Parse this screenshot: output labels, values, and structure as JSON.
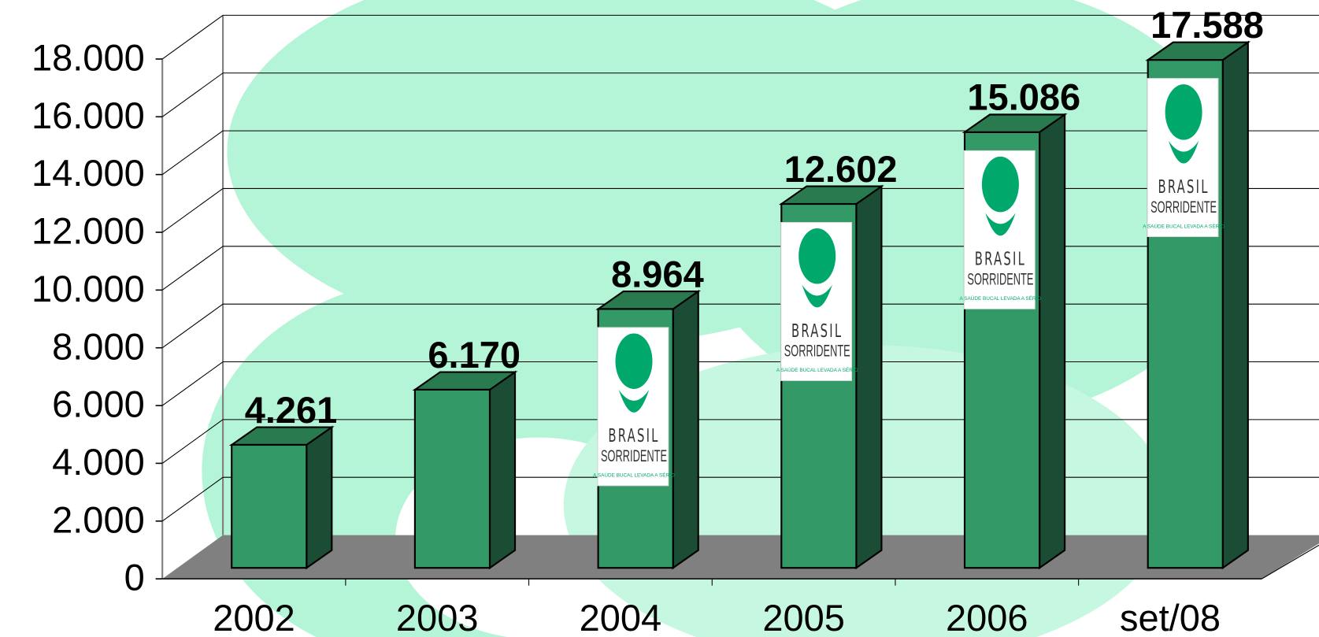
{
  "chart_data": {
    "type": "bar3d",
    "categories": [
      "2002",
      "2003",
      "2004",
      "2005",
      "2006",
      "set/08"
    ],
    "values": [
      4261,
      6170,
      8964,
      12602,
      15086,
      17588
    ],
    "value_labels": [
      "4.261",
      "6.170",
      "8.964",
      "12.602",
      "15.086",
      "17.588"
    ],
    "colors": {
      "front": "#339966",
      "side": "#1b4d34",
      "top": "#2a7a50"
    },
    "ylim": [
      0,
      18000
    ],
    "yticks": [
      0,
      {
        "value": 2000,
        "label": "2.000"
      },
      {
        "value": 4000,
        "label": "4.000"
      },
      {
        "value": 6000,
        "label": "6.000"
      },
      {
        "value": 8000,
        "label": "8.000"
      },
      {
        "value": 10000,
        "label": "10.000"
      },
      {
        "value": 12000,
        "label": "12.000"
      },
      {
        "value": 14000,
        "label": "14.000"
      },
      {
        "value": 16000,
        "label": "16.000"
      },
      {
        "value": 18000,
        "label": "18.000"
      }
    ],
    "grid": true
  },
  "logo": {
    "line1": "BRASIL",
    "line2": "SORRIDENTE",
    "tagline": "A SAÚDE BUCAL LEVADA A SÉRIO"
  }
}
